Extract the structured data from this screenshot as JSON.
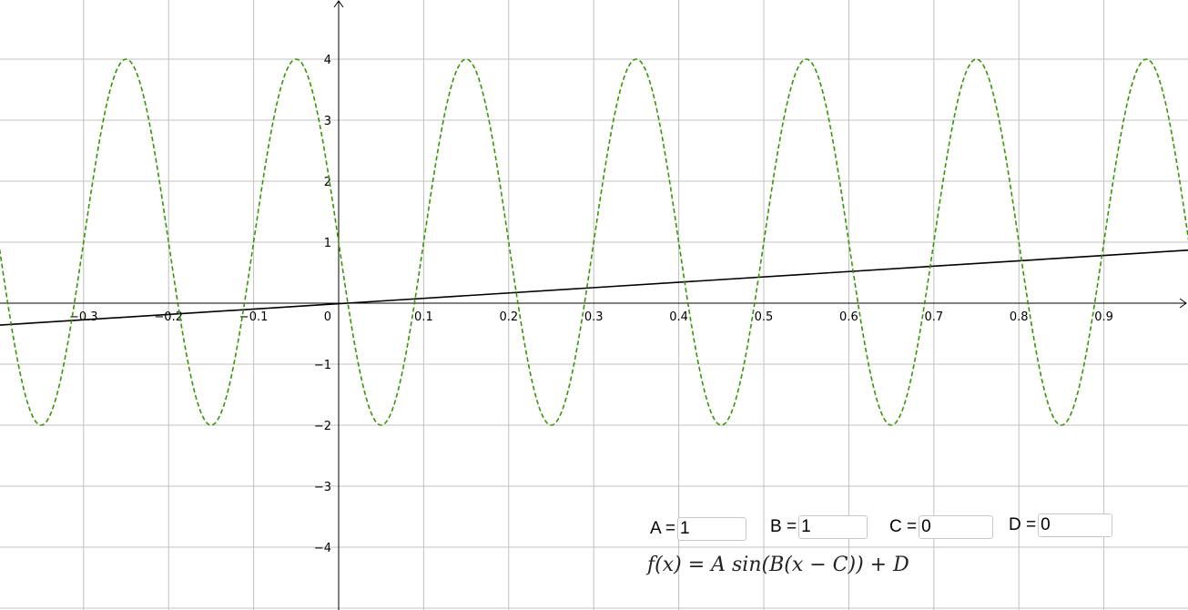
{
  "chart_data": {
    "type": "line",
    "xlim": [
      -0.4,
      1.0
    ],
    "ylim": [
      -5,
      5
    ],
    "x_ticks": [
      -0.3,
      -0.2,
      -0.1,
      0.1,
      0.2,
      0.3,
      0.4,
      0.5,
      0.6,
      0.7,
      0.8,
      0.9
    ],
    "x_tick_labels": [
      "−0.3",
      "−0.2",
      "−0.1",
      "0.1",
      "0.2",
      "0.3",
      "0.4",
      "0.5",
      "0.6",
      "0.7",
      "0.8",
      "0.9"
    ],
    "y_ticks": [
      -4,
      -3,
      -2,
      -1,
      1,
      2,
      3,
      4
    ],
    "y_tick_labels": [
      "−4",
      "−3",
      "−2",
      "−1",
      "1",
      "2",
      "3",
      "4"
    ],
    "origin_label": "0",
    "grid": true,
    "series": [
      {
        "kind": "line",
        "style": "solid",
        "color": "#000000",
        "x": [
          -0.4,
          1.0
        ],
        "y": [
          -0.36,
          0.87
        ]
      },
      {
        "kind": "sine",
        "style": "dashed",
        "color": "#339900",
        "amplitude": 3,
        "period": 0.2,
        "midline": 1,
        "peak_x": 0.15,
        "x_range": [
          -0.4,
          1.0
        ]
      }
    ]
  },
  "params": [
    {
      "label": "A =",
      "value": "1"
    },
    {
      "label": "B =",
      "value": "1"
    },
    {
      "label": "C =",
      "value": "0"
    },
    {
      "label": "D =",
      "value": "0"
    }
  ],
  "formula": "f(x) = A sin(B(x − C)) + D"
}
